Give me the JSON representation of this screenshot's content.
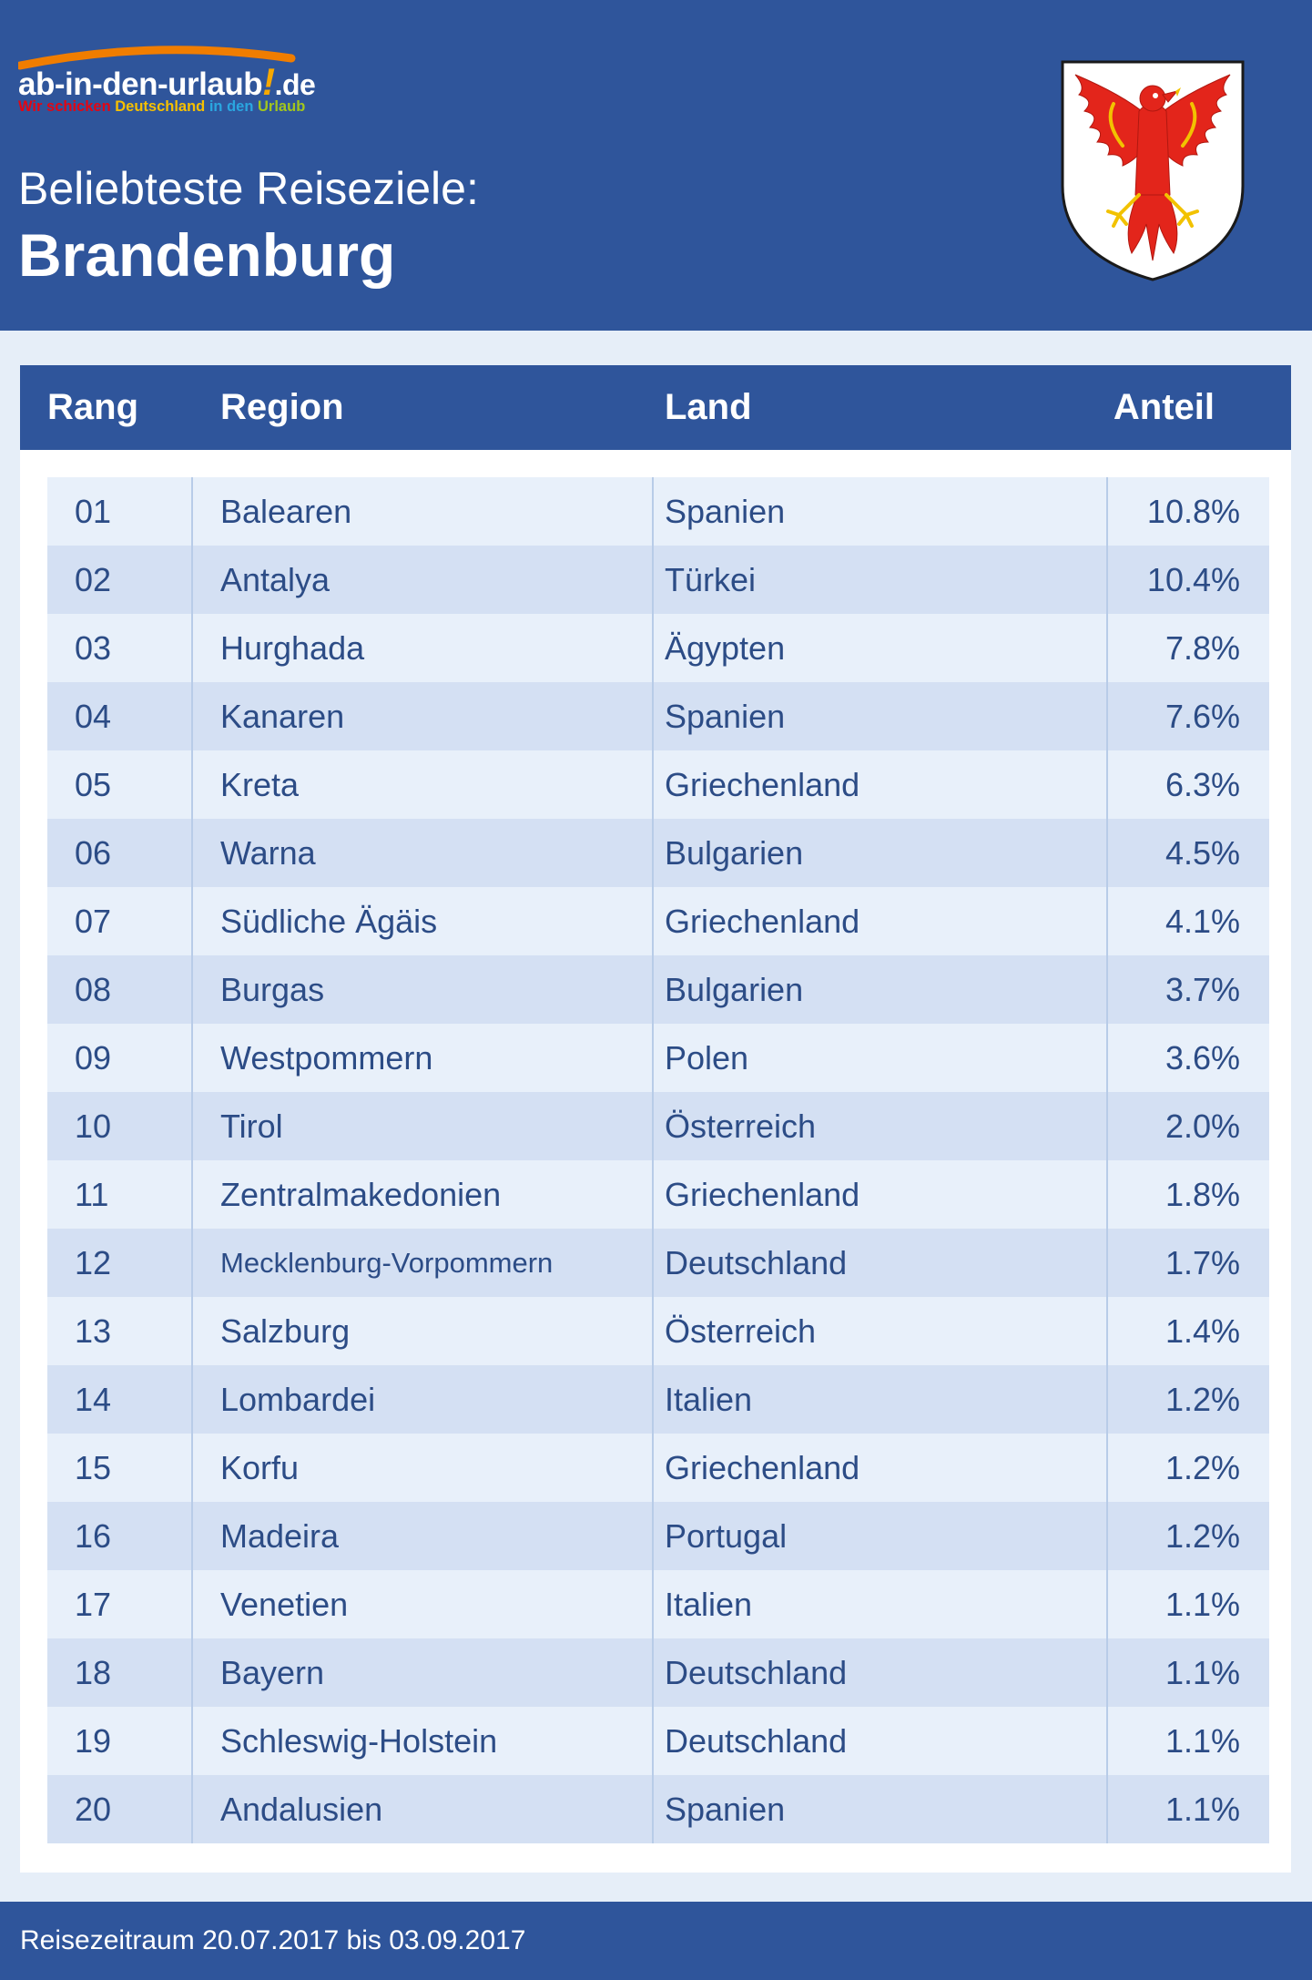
{
  "brand": {
    "name_main": "ab-in-den-urlaub",
    "name_excl": "!",
    "name_tld": ".de",
    "tagline_1": "Wir schicken ",
    "tagline_2": "Deutschland ",
    "tagline_3": "in den ",
    "tagline_4": "Urlaub"
  },
  "header": {
    "subtitle": "Beliebteste Reiseziele:",
    "title": "Brandenburg"
  },
  "colors": {
    "primary_blue": "#2f559b",
    "row_light": "#e8f0fa",
    "row_dark": "#d4e0f3",
    "text_blue": "#2c4c86",
    "crest_red": "#e3251b"
  },
  "icons": {
    "crest": "brandenburg-eagle-crest-icon"
  },
  "chart_data": {
    "type": "table",
    "columns": [
      "Rang",
      "Region",
      "Land",
      "Anteil"
    ],
    "rows": [
      {
        "rank": "01",
        "region": "Balearen",
        "land": "Spanien",
        "share": "10.8%"
      },
      {
        "rank": "02",
        "region": "Antalya",
        "land": "Türkei",
        "share": "10.4%"
      },
      {
        "rank": "03",
        "region": "Hurghada",
        "land": "Ägypten",
        "share": "7.8%"
      },
      {
        "rank": "04",
        "region": "Kanaren",
        "land": "Spanien",
        "share": "7.6%"
      },
      {
        "rank": "05",
        "region": "Kreta",
        "land": "Griechenland",
        "share": "6.3%"
      },
      {
        "rank": "06",
        "region": "Warna",
        "land": "Bulgarien",
        "share": "4.5%"
      },
      {
        "rank": "07",
        "region": "Südliche Ägäis",
        "land": "Griechenland",
        "share": "4.1%"
      },
      {
        "rank": "08",
        "region": "Burgas",
        "land": "Bulgarien",
        "share": "3.7%"
      },
      {
        "rank": "09",
        "region": "Westpommern",
        "land": "Polen",
        "share": "3.6%"
      },
      {
        "rank": "10",
        "region": "Tirol",
        "land": "Österreich",
        "share": "2.0%"
      },
      {
        "rank": "11",
        "region": "Zentralmakedonien",
        "land": "Griechenland",
        "share": "1.8%"
      },
      {
        "rank": "12",
        "region": "Mecklenburg-Vorpommern",
        "land": "Deutschland",
        "share": "1.7%"
      },
      {
        "rank": "13",
        "region": "Salzburg",
        "land": "Österreich",
        "share": "1.4%"
      },
      {
        "rank": "14",
        "region": "Lombardei",
        "land": "Italien",
        "share": "1.2%"
      },
      {
        "rank": "15",
        "region": "Korfu",
        "land": "Griechenland",
        "share": "1.2%"
      },
      {
        "rank": "16",
        "region": "Madeira",
        "land": "Portugal",
        "share": "1.2%"
      },
      {
        "rank": "17",
        "region": "Venetien",
        "land": "Italien",
        "share": "1.1%"
      },
      {
        "rank": "18",
        "region": "Bayern",
        "land": "Deutschland",
        "share": "1.1%"
      },
      {
        "rank": "19",
        "region": "Schleswig-Holstein",
        "land": "Deutschland",
        "share": "1.1%"
      },
      {
        "rank": "20",
        "region": "Andalusien",
        "land": "Spanien",
        "share": "1.1%"
      }
    ]
  },
  "footer": {
    "text": "Reisezeitraum 20.07.2017 bis 03.09.2017"
  }
}
